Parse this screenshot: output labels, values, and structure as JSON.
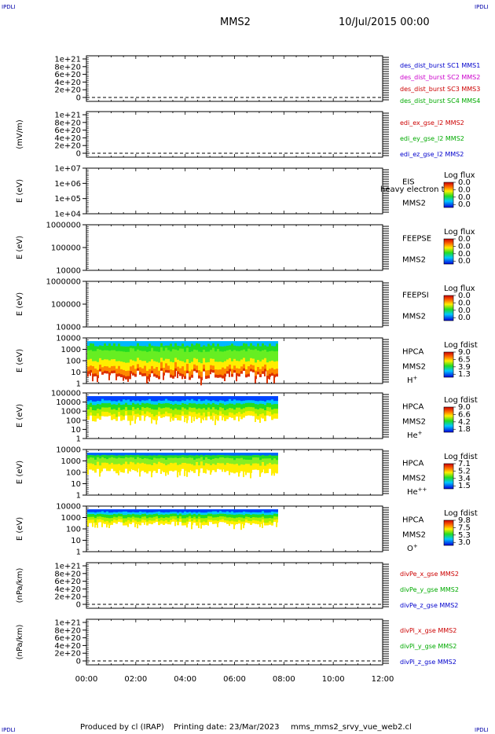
{
  "header": {
    "corner_tl": "IPDLI",
    "corner_tr": "IPDLI",
    "corner_bl": "IPDLI",
    "corner_br": "IPDLI",
    "mission": "MMS2",
    "date": "10/Jul/2015 00:00"
  },
  "footer": {
    "produced_by": "Produced by cl (IRAP)",
    "printing_date": "Printing date: 23/Mar/2023",
    "script_name": "mms_mms2_srvy_vue_web2.cl"
  },
  "chart_data": {
    "type": "heatmap",
    "x_ticks": [
      "00:00",
      "02:00",
      "04:00",
      "06:00",
      "08:00",
      "10:00",
      "12:00"
    ],
    "x_range_hours": [
      0,
      12
    ],
    "data_end_hours": 7.75,
    "panels": [
      {
        "kind": "line",
        "ylabel": "",
        "yticks": [
          "1e+21",
          "8e+20",
          "6e+20",
          "4e+20",
          "2e+20",
          "0"
        ],
        "legend": [
          {
            "text": "des_dist_burst SC1 MMS1",
            "color": "#0000cc"
          },
          {
            "text": "des_dist_burst SC2 MMS2",
            "color": "#cc00cc"
          },
          {
            "text": "des_dist_burst SC3 MMS3",
            "color": "#cc0000"
          },
          {
            "text": "des_dist_burst SC4 MMS4",
            "color": "#00aa00"
          }
        ]
      },
      {
        "kind": "line",
        "ylabel": "(mV/m)",
        "yticks": [
          "1e+21",
          "8e+20",
          "6e+20",
          "4e+20",
          "2e+20",
          "0"
        ],
        "legend": [
          {
            "text": "edi_ex_gse_l2 MMS2",
            "color": "#cc0000"
          },
          {
            "text": "edi_ey_gse_l2 MMS2",
            "color": "#00aa00"
          },
          {
            "text": "edi_ez_gse_l2 MMS2",
            "color": "#0000cc"
          }
        ]
      },
      {
        "kind": "spectro",
        "ylabel": "E (eV)",
        "yticks": [
          "1e+07",
          "1e+06",
          "1e+05",
          "1e+04"
        ],
        "labels": [
          "EIS",
          "MMS2"
        ],
        "overlay": "heavy electron to",
        "cbar_title": "Log flux",
        "cbar_ticks": [
          "0.0",
          "0.0",
          "0.0",
          "0.0"
        ]
      },
      {
        "kind": "spectro",
        "ylabel": "E (eV)",
        "yticks": [
          "1000000",
          "100000",
          "10000"
        ],
        "labels": [
          "FEEPSE",
          "MMS2"
        ],
        "overlay": "",
        "cbar_title": "Log flux",
        "cbar_ticks": [
          "0.0",
          "0.0",
          "0.0",
          "0.0"
        ]
      },
      {
        "kind": "spectro",
        "ylabel": "E (eV)",
        "yticks": [
          "1000000",
          "100000",
          "10000"
        ],
        "labels": [
          "FEEPSI",
          "MMS2"
        ],
        "overlay": "",
        "cbar_title": "Log flux",
        "cbar_ticks": [
          "0.0",
          "0.0",
          "0.0",
          "0.0"
        ]
      },
      {
        "kind": "spectro",
        "ylabel": "E (eV)",
        "yticks": [
          "10000",
          "1000",
          "100",
          "10",
          "1"
        ],
        "labels": [
          "HPCA",
          "MMS2"
        ],
        "species": "H",
        "species_sup": "+",
        "cbar_title": "Log fdist",
        "cbar_ticks": [
          "9.0",
          "6.5",
          "3.9",
          "1.3"
        ],
        "band": {
          "top": 0.07,
          "bottom": 0.92,
          "profile": "h"
        }
      },
      {
        "kind": "spectro",
        "ylabel": "E (eV)",
        "yticks": [
          "100000",
          "10000",
          "1000",
          "100",
          "10",
          "1"
        ],
        "labels": [
          "HPCA",
          "MMS2"
        ],
        "species": "He",
        "species_sup": "+",
        "cbar_title": "Log fdist",
        "cbar_ticks": [
          "9.0",
          "6.6",
          "4.2",
          "1.8"
        ],
        "band": {
          "top": 0.07,
          "bottom": 0.62,
          "profile": "he"
        }
      },
      {
        "kind": "spectro",
        "ylabel": "E (eV)",
        "yticks": [
          "10000",
          "1000",
          "100",
          "10",
          "1"
        ],
        "labels": [
          "HPCA",
          "MMS2"
        ],
        "species": "He",
        "species_sup": "++",
        "cbar_title": "Log fdist",
        "cbar_ticks": [
          "7.1",
          "5.2",
          "3.4",
          "1.5"
        ],
        "band": {
          "top": 0.07,
          "bottom": 0.52,
          "profile": "he2"
        }
      },
      {
        "kind": "spectro",
        "ylabel": "E (eV)",
        "yticks": [
          "10000",
          "1000",
          "100",
          "10",
          "1"
        ],
        "labels": [
          "HPCA",
          "MMS2"
        ],
        "species": "O",
        "species_sup": "+",
        "cbar_title": "Log fdist",
        "cbar_ticks": [
          "9.8",
          "7.5",
          "5.3",
          "3.0"
        ],
        "band": {
          "top": 0.07,
          "bottom": 0.42,
          "profile": "o"
        }
      },
      {
        "kind": "line",
        "ylabel": "(nPa/km)",
        "yticks": [
          "1e+21",
          "8e+20",
          "6e+20",
          "4e+20",
          "2e+20",
          "0"
        ],
        "legend": [
          {
            "text": "divPe_x_gse MMS2",
            "color": "#cc0000"
          },
          {
            "text": "divPe_y_gse MMS2",
            "color": "#00aa00"
          },
          {
            "text": "divPe_z_gse MMS2",
            "color": "#0000cc"
          }
        ]
      },
      {
        "kind": "line",
        "ylabel": "(nPa/km)",
        "yticks": [
          "1e+21",
          "8e+20",
          "6e+20",
          "4e+20",
          "2e+20",
          "0"
        ],
        "legend": [
          {
            "text": "divPi_x_gse MMS2",
            "color": "#cc0000"
          },
          {
            "text": "divPi_y_gse MMS2",
            "color": "#00aa00"
          },
          {
            "text": "divPi_z_gse MMS2",
            "color": "#0000cc"
          }
        ]
      }
    ]
  }
}
